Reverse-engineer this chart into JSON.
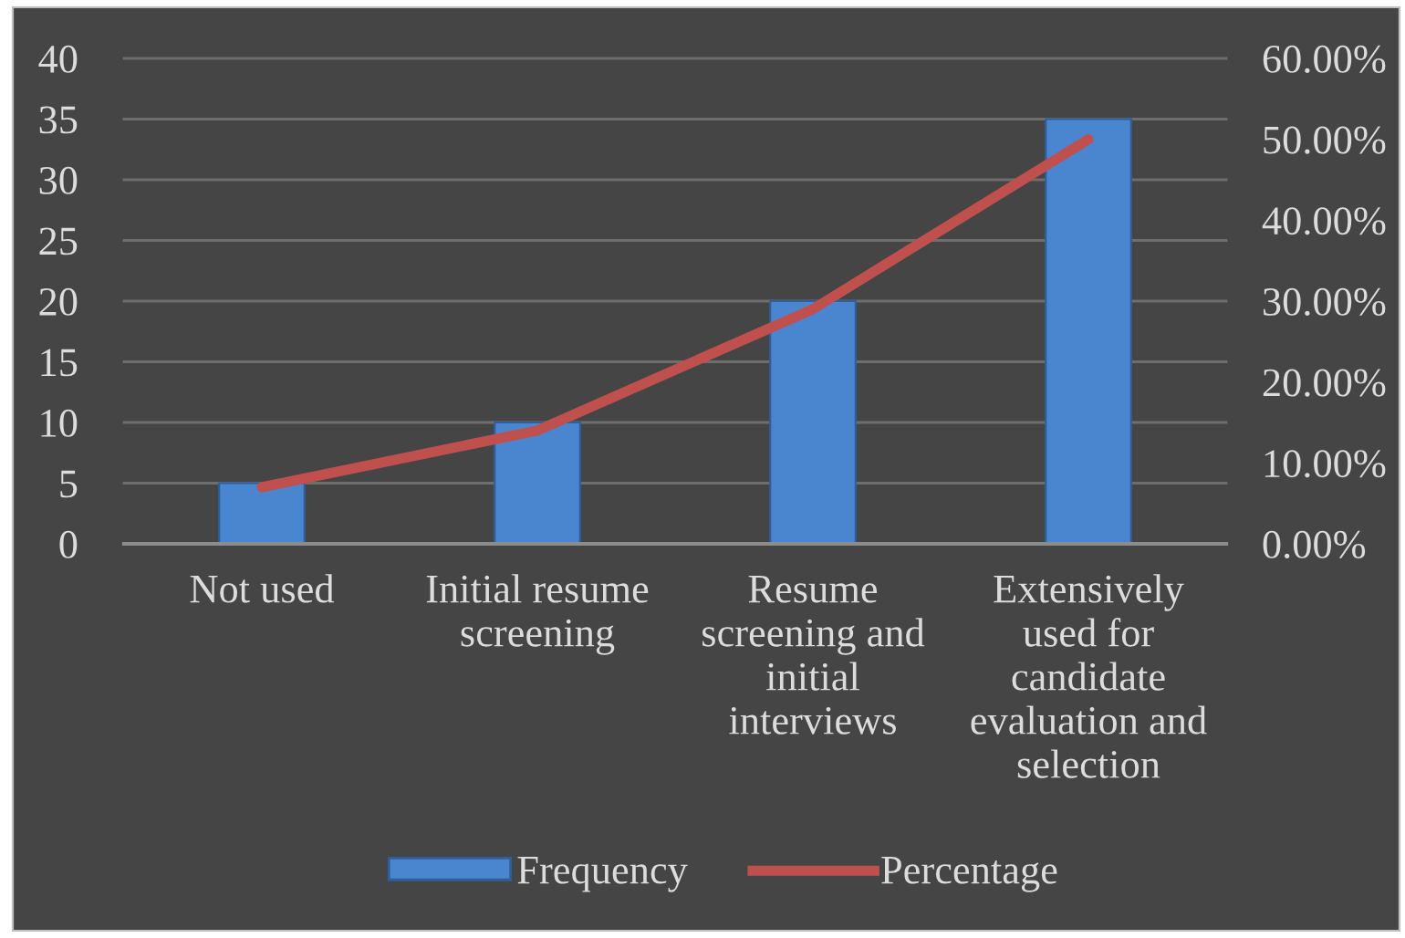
{
  "chart_data": {
    "type": "bar",
    "categories": [
      "Not used",
      "Initial resume screening",
      "Resume screening and initial interviews",
      "Extensively used for candidate evaluation and selection"
    ],
    "series": [
      {
        "name": "Frequency",
        "color": "#4a86cf",
        "values": [
          5,
          10,
          20,
          35
        ]
      },
      {
        "name": "Percentage",
        "type": "line",
        "axis": "y2",
        "color": "#c0504d",
        "values": [
          7,
          14,
          29,
          50
        ]
      }
    ],
    "ylim": [
      0,
      40
    ],
    "yticks": [
      0,
      5,
      10,
      15,
      20,
      25,
      30,
      35,
      40
    ],
    "y2lim": [
      0,
      60
    ],
    "y2ticks": [
      {
        "value": 0,
        "label": "0.00%"
      },
      {
        "value": 10,
        "label": "10.00%"
      },
      {
        "value": 20,
        "label": "20.00%"
      },
      {
        "value": 30,
        "label": "30.00%"
      },
      {
        "value": 40,
        "label": "40.00%"
      },
      {
        "value": 50,
        "label": "50.00%"
      },
      {
        "value": 60,
        "label": "60.00%"
      }
    ],
    "grid": "y",
    "legend": "bottom",
    "line_style": "solid"
  }
}
